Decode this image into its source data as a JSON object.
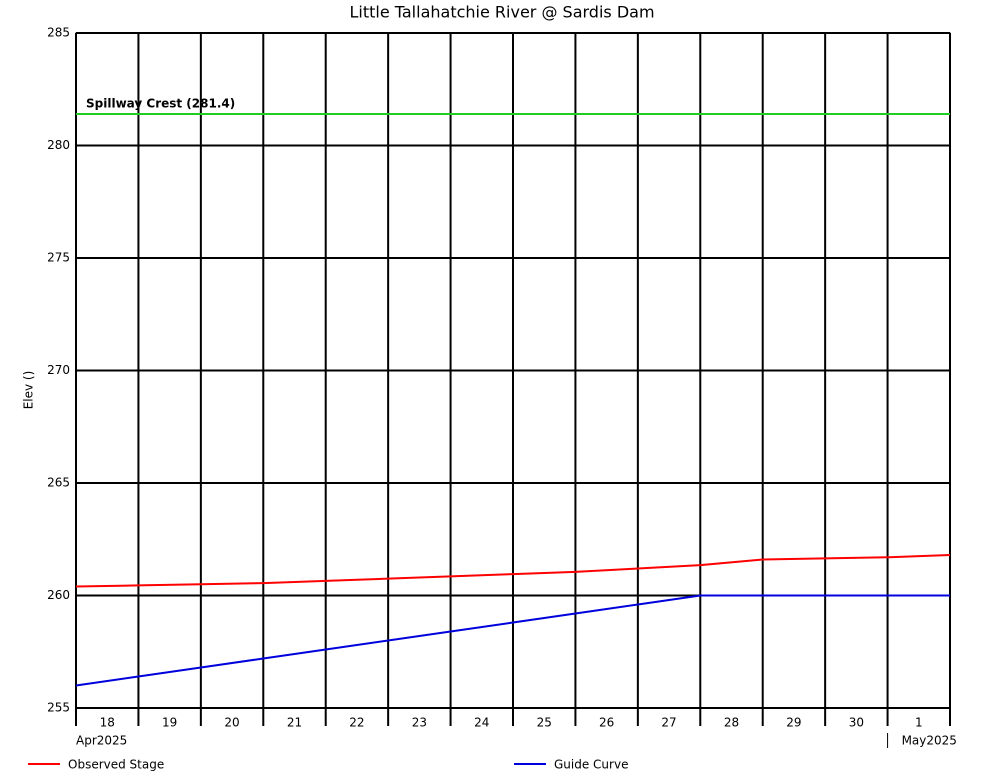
{
  "chart_data": {
    "type": "line",
    "title": "Little Tallahatchie River @ Sardis Dam",
    "y_label": "Elev ()",
    "x": [
      "2025-04-18",
      "2025-04-19",
      "2025-04-20",
      "2025-04-21",
      "2025-04-22",
      "2025-04-23",
      "2025-04-24",
      "2025-04-25",
      "2025-04-26",
      "2025-04-27",
      "2025-04-28",
      "2025-04-29",
      "2025-04-30",
      "2025-05-01",
      "2025-05-02"
    ],
    "series": [
      {
        "name": "Observed Stage",
        "color": "#ff0000",
        "values": [
          260.4,
          260.45,
          260.5,
          260.55,
          260.65,
          260.75,
          260.85,
          260.95,
          261.05,
          261.2,
          261.35,
          261.6,
          261.65,
          261.7,
          261.8
        ]
      },
      {
        "name": "Guide Curve",
        "color": "#0000dd",
        "values": [
          256,
          256.4,
          256.8,
          257.2,
          257.6,
          258,
          258.4,
          258.8,
          259.2,
          259.6,
          260,
          260,
          260,
          260,
          260
        ]
      }
    ],
    "reference_lines": [
      {
        "value": 281.4,
        "label": "Spillway Crest (281.4)",
        "color": "#22cc22"
      }
    ],
    "xlim": [
      "2025-04-18",
      "2025-05-02"
    ],
    "xticks": [
      {
        "value": "2025-04-18",
        "label": "18"
      },
      {
        "value": "2025-04-19",
        "label": "19"
      },
      {
        "value": "2025-04-20",
        "label": "20"
      },
      {
        "value": "2025-04-21",
        "label": "21"
      },
      {
        "value": "2025-04-22",
        "label": "22"
      },
      {
        "value": "2025-04-23",
        "label": "23"
      },
      {
        "value": "2025-04-24",
        "label": "24"
      },
      {
        "value": "2025-04-25",
        "label": "25"
      },
      {
        "value": "2025-04-26",
        "label": "26"
      },
      {
        "value": "2025-04-27",
        "label": "27"
      },
      {
        "value": "2025-04-28",
        "label": "28"
      },
      {
        "value": "2025-04-29",
        "label": "29"
      },
      {
        "value": "2025-04-30",
        "label": "30"
      },
      {
        "value": "2025-05-01",
        "label": "1"
      }
    ],
    "x_month_labels": [
      {
        "value": "2025-04-18",
        "label": "Apr2025"
      },
      {
        "value": "2025-05-01",
        "label": "May2025"
      }
    ],
    "ylim": [
      255,
      285
    ],
    "yticks": [
      255,
      260,
      265,
      270,
      275,
      280,
      285
    ],
    "grid": true
  }
}
